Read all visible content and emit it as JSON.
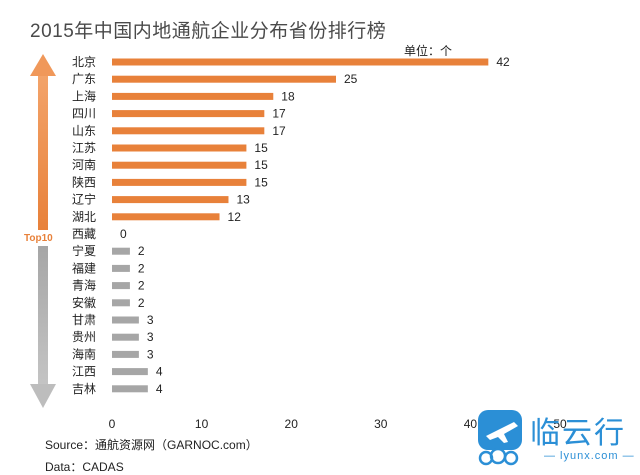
{
  "title": "2015年中国内地通航企业分布省份排行榜",
  "unit_label": "单位：个",
  "top10_label": "Top10",
  "source": "Source：通航资源网（GARNOC.com）",
  "data_note": "Data：CADAS",
  "logo": {
    "text_cn": "临云行",
    "text_en": "— lyunx.com —"
  },
  "colors": {
    "top10": "#e8813a",
    "rest": "#a6a6a6",
    "logo": "#2b8fd6"
  },
  "chart_data": {
    "type": "bar",
    "orientation": "horizontal",
    "title": "2015年中国内地通航企业分布省份排行榜",
    "unit": "单位：个",
    "categories": [
      "北京",
      "广东",
      "上海",
      "四川",
      "山东",
      "江苏",
      "河南",
      "陕西",
      "辽宁",
      "湖北",
      "西藏",
      "宁夏",
      "福建",
      "青海",
      "安徽",
      "甘肃",
      "贵州",
      "海南",
      "江西",
      "吉林"
    ],
    "values": [
      42,
      25,
      18,
      17,
      17,
      15,
      15,
      15,
      13,
      12,
      0,
      2,
      2,
      2,
      2,
      3,
      3,
      3,
      4,
      4
    ],
    "xlim": [
      0,
      50
    ],
    "xticks": [
      0,
      10,
      20,
      30,
      40,
      50
    ],
    "top10_count": 10,
    "grid": false
  }
}
